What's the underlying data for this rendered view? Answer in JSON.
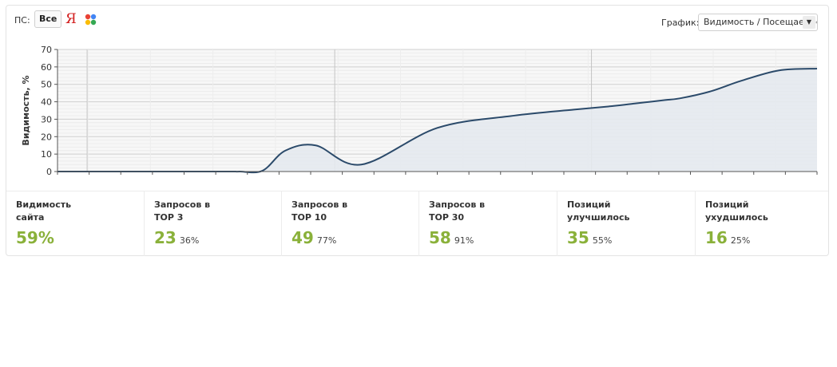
{
  "toolbar": {
    "ps_label": "ПС:",
    "all_button": "Все",
    "yandex_glyph": "Я",
    "graph_label": "График:",
    "graph_select_value": "Видимость / Посещаемость"
  },
  "colors": {
    "accent_green": "#8ab13a",
    "line": "#2b4a6a",
    "area": "#e4e9ee"
  },
  "chart_data": {
    "type": "area",
    "ylabel": "Видимость, %",
    "ylim": [
      0,
      70
    ],
    "yticks": [
      0,
      10,
      20,
      30,
      40,
      50,
      60,
      70
    ],
    "grid": true,
    "x": [
      0,
      5,
      10,
      14.5,
      16,
      18,
      20,
      23,
      24,
      27,
      30,
      34,
      40,
      50,
      60,
      68,
      73,
      76,
      78,
      80,
      82,
      86,
      90,
      95,
      100
    ],
    "series": [
      {
        "values": [
          0,
          0,
          0,
          0,
          0,
          0,
          0,
          0,
          0,
          0.5,
          12,
          15,
          4,
          25,
          32,
          35.5,
          37.5,
          39,
          40,
          41,
          42,
          46,
          52,
          58,
          59
        ]
      }
    ]
  },
  "stats": [
    {
      "title": "Видимость\nсайта",
      "value": "59%",
      "percent": ""
    },
    {
      "title": "Запросов в\nТОР 3",
      "value": "23",
      "percent": "36%"
    },
    {
      "title": "Запросов в\nТОР 10",
      "value": "49",
      "percent": "77%"
    },
    {
      "title": "Запросов в\nТОР 30",
      "value": "58",
      "percent": "91%"
    },
    {
      "title": "Позиций\nулучшилось",
      "value": "35",
      "percent": "55%"
    },
    {
      "title": "Позиций\nухудшилось",
      "value": "16",
      "percent": "25%"
    }
  ]
}
